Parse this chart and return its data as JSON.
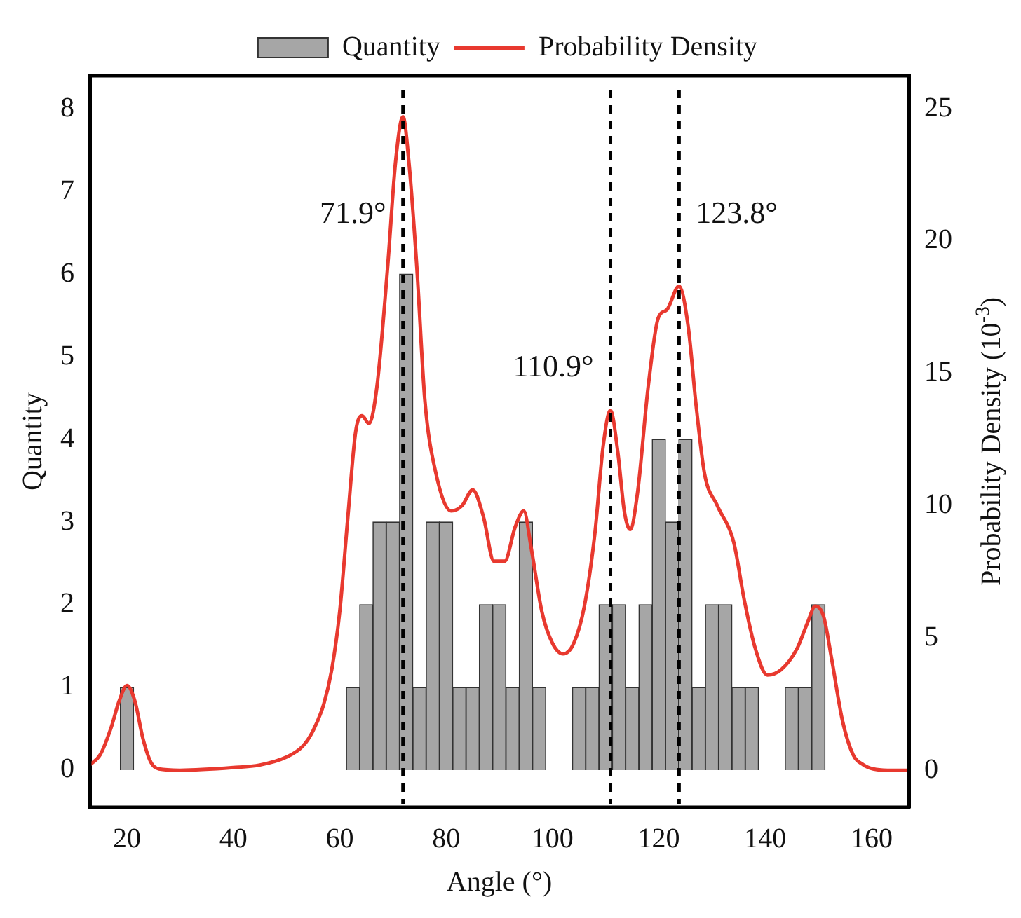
{
  "chart_data": {
    "type": "histogram",
    "xlabel": "Angle (°)",
    "ylabel": "Quantity",
    "y2label": "Probability Density (10$^{-3}$)",
    "bins": [
      18.75,
      21.25,
      23.75,
      26.25,
      28.75,
      31.25,
      33.75,
      36.25,
      38.75,
      41.25,
      43.75,
      46.25,
      48.75,
      51.25,
      53.75,
      56.25,
      58.75,
      61.25,
      63.75,
      66.25,
      68.75,
      71.25,
      73.75,
      76.25,
      78.75,
      81.25,
      83.75,
      86.25,
      88.75,
      91.25,
      93.75,
      96.25,
      98.75,
      101.25,
      103.75,
      106.25,
      108.75,
      111.25,
      113.75,
      116.25,
      118.75,
      121.25,
      123.75,
      126.25,
      128.75,
      131.25,
      133.75,
      136.25,
      138.75,
      141.25,
      143.75,
      146.25,
      148.75,
      151.25
    ],
    "series": [
      {
        "name": "Quantity",
        "type": "histogram",
        "color": "#a6a6a6",
        "values": [
          1,
          0,
          0,
          0,
          0,
          0,
          0,
          0,
          0,
          0,
          0,
          0,
          0,
          0,
          0,
          0,
          0,
          1,
          2,
          3,
          3,
          6,
          1,
          3,
          3,
          1,
          1,
          2,
          2,
          1,
          3,
          1,
          0,
          0,
          1,
          1,
          2,
          2,
          1,
          2,
          4,
          3,
          4,
          1,
          2,
          2,
          1,
          1,
          0,
          0,
          1,
          1,
          2
        ]
      },
      {
        "name": "Probability Density",
        "type": "line",
        "axis": "y2",
        "color": "#e8392f",
        "x": [
          13,
          15,
          17,
          18.5,
          20,
          21.5,
          23,
          24.5,
          26,
          30,
          40,
          45,
          50,
          53,
          55,
          57,
          58.5,
          60,
          61.5,
          63,
          64.2,
          65.5,
          67,
          69,
          70.5,
          71.9,
          73,
          74.5,
          76,
          78,
          81,
          83,
          85,
          87,
          89,
          91,
          93,
          94.6,
          96,
          98,
          100,
          102,
          104,
          106,
          108,
          109.5,
          110.9,
          112.3,
          113.5,
          114.6,
          116,
          118,
          119.9,
          121.5,
          123.8,
          125.5,
          127,
          128.6,
          131,
          134.1,
          136,
          138,
          140.4,
          143,
          146,
          148,
          149.4,
          151,
          152.5,
          154.5,
          156.5,
          158.5,
          160.3,
          163,
          167
        ],
        "values": [
          0.2,
          0.6,
          1.6,
          2.6,
          3.2,
          2.6,
          1.2,
          0.3,
          0.05,
          0,
          0.1,
          0.2,
          0.5,
          0.9,
          1.5,
          2.5,
          3.8,
          6,
          9.5,
          12.8,
          13.4,
          13.1,
          14.5,
          19,
          23,
          24.7,
          23,
          19,
          14,
          11.3,
          9.8,
          10,
          10.6,
          9.6,
          7.9,
          7.9,
          9.2,
          9.8,
          8.4,
          6,
          4.8,
          4.4,
          4.8,
          6.2,
          9,
          12.2,
          13.6,
          12,
          9.8,
          9.1,
          10.5,
          14.5,
          17.1,
          17.4,
          18.3,
          16.8,
          13.8,
          11.2,
          10,
          8.6,
          6.5,
          4.7,
          3.6,
          3.8,
          4.6,
          5.6,
          6.2,
          5.8,
          4.2,
          1.9,
          0.6,
          0.2,
          0.05,
          0,
          0
        ]
      }
    ],
    "xlim": [
      13,
      167
    ],
    "xticks": [
      20,
      40,
      60,
      80,
      100,
      120,
      140,
      160
    ],
    "ylim": [
      -0.45,
      8.4
    ],
    "yticks": [
      0,
      1,
      2,
      3,
      4,
      5,
      6,
      7,
      8
    ],
    "y2lim": [
      -1.4,
      26.25
    ],
    "y2ticks": [
      0,
      5,
      10,
      15,
      20,
      25
    ],
    "ref_lines": [
      {
        "axis": "x",
        "value": 71.9,
        "label": "71.9°",
        "line_style": "dashed",
        "color": "#000000"
      },
      {
        "axis": "x",
        "value": 110.9,
        "label": "110.9°",
        "line_style": "dashed",
        "color": "#000000"
      },
      {
        "axis": "x",
        "value": 123.8,
        "label": "123.8°",
        "line_style": "dashed",
        "color": "#000000"
      }
    ],
    "grid": false,
    "legend": "top"
  }
}
